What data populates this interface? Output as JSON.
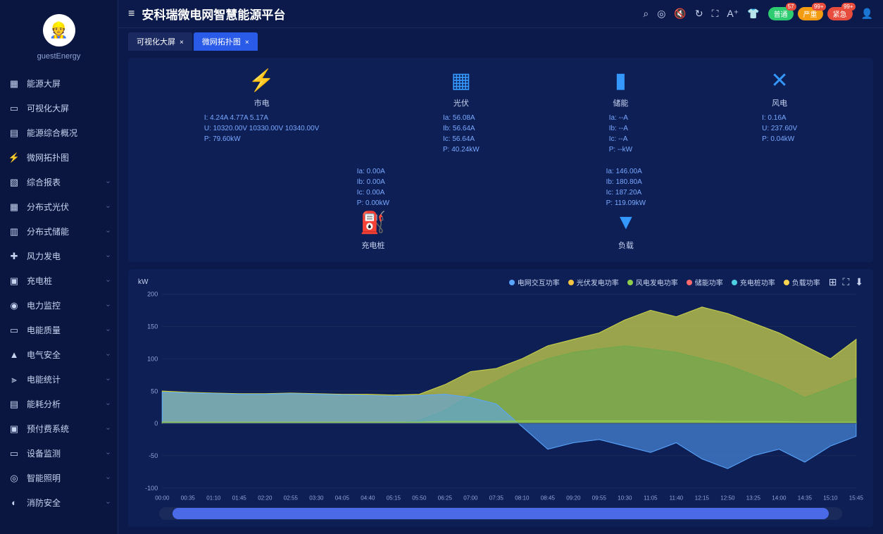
{
  "sidebar": {
    "username": "guestEnergy",
    "avatar_emoji": "👷",
    "items": [
      {
        "icon": "▦",
        "label": "能源大屏",
        "expandable": false
      },
      {
        "icon": "▭",
        "label": "可视化大屏",
        "expandable": false
      },
      {
        "icon": "▤",
        "label": "能源综合概况",
        "expandable": false
      },
      {
        "icon": "⚡",
        "label": "微网拓扑图",
        "expandable": false
      },
      {
        "icon": "▧",
        "label": "综合报表",
        "expandable": true
      },
      {
        "icon": "▦",
        "label": "分布式光伏",
        "expandable": true
      },
      {
        "icon": "▥",
        "label": "分布式储能",
        "expandable": true
      },
      {
        "icon": "✚",
        "label": "风力发电",
        "expandable": true
      },
      {
        "icon": "▣",
        "label": "充电桩",
        "expandable": true
      },
      {
        "icon": "◉",
        "label": "电力监控",
        "expandable": true
      },
      {
        "icon": "▭",
        "label": "电能质量",
        "expandable": true
      },
      {
        "icon": "▲",
        "label": "电气安全",
        "expandable": true
      },
      {
        "icon": "⫸",
        "label": "电能统计",
        "expandable": true
      },
      {
        "icon": "▤",
        "label": "能耗分析",
        "expandable": true
      },
      {
        "icon": "▣",
        "label": "预付费系统",
        "expandable": true
      },
      {
        "icon": "▭",
        "label": "设备监测",
        "expandable": true
      },
      {
        "icon": "◎",
        "label": "智能照明",
        "expandable": true
      },
      {
        "icon": "◐",
        "label": "消防安全",
        "expandable": true
      }
    ]
  },
  "header": {
    "title": "安科瑞微电网智慧能源平台",
    "badges": [
      {
        "label": "普通",
        "color_class": "badge-green",
        "count": "57"
      },
      {
        "label": "严重",
        "color_class": "badge-orange",
        "count": "99+"
      },
      {
        "label": "紧急",
        "color_class": "badge-red",
        "count": "99+"
      }
    ]
  },
  "tabs": [
    {
      "label": "可视化大屏",
      "active": false
    },
    {
      "label": "微网拓扑图",
      "active": true
    }
  ],
  "topology": {
    "row1": [
      {
        "name": "市电",
        "icon_char": "⚡",
        "stats": [
          "I: 4.24A 4.77A 5.17A",
          "U: 10320.00V 10330.00V 10340.00V",
          "P: 79.60kW"
        ]
      },
      {
        "name": "光伏",
        "icon_char": "▦",
        "stats": [
          "Ia: 56.08A",
          "Ib: 56.64A",
          "Ic: 56.64A",
          "P: 40.24kW"
        ]
      },
      {
        "name": "储能",
        "icon_char": "▮",
        "stats": [
          "Ia: --A",
          "Ib: --A",
          "Ic: --A",
          "P: --kW"
        ]
      },
      {
        "name": "风电",
        "icon_char": "✕",
        "stats": [
          "I: 0.16A",
          "U: 237.60V",
          "P: 0.04kW"
        ]
      }
    ],
    "row2": [
      {
        "name": "充电桩",
        "icon_char": "⛽",
        "stats": [
          "Ia: 0.00A",
          "Ib: 0.00A",
          "Ic: 0.00A",
          "P: 0.00kW"
        ]
      },
      {
        "name": "负载",
        "icon_char": "▼",
        "stats": [
          "Ia: 146.00A",
          "Ib: 180.80A",
          "Ic: 187.20A",
          "P: 119.09kW"
        ]
      }
    ]
  },
  "chart": {
    "unit": "kW",
    "y_ticks": [
      -100,
      -50,
      0,
      50,
      100,
      150,
      200
    ],
    "ylim": [
      -100,
      200
    ],
    "x_labels": [
      "00:00",
      "00:35",
      "01:10",
      "01:45",
      "02:20",
      "02:55",
      "03:30",
      "04:05",
      "04:40",
      "05:15",
      "05:50",
      "06:25",
      "07:00",
      "07:35",
      "08:10",
      "08:45",
      "09:20",
      "09:55",
      "10:30",
      "11:05",
      "11:40",
      "12:15",
      "12:50",
      "13:25",
      "14:00",
      "14:35",
      "15:10",
      "15:45"
    ],
    "legend": [
      {
        "label": "电网交互功率",
        "color": "#5aa6ff"
      },
      {
        "label": "光伏发电功率",
        "color": "#f5c542"
      },
      {
        "label": "风电发电功率",
        "color": "#8fce4d"
      },
      {
        "label": "储能功率",
        "color": "#ff6b6b"
      },
      {
        "label": "充电桩功率",
        "color": "#4dd0e1"
      },
      {
        "label": "负载功率",
        "color": "#ffd54f"
      }
    ],
    "series": {
      "grid": {
        "color": "#5aa6ff",
        "opacity": 0.55,
        "values": [
          48,
          47,
          46,
          45,
          45,
          46,
          45,
          44,
          43,
          42,
          43,
          45,
          40,
          30,
          -5,
          -40,
          -30,
          -25,
          -35,
          -45,
          -30,
          -55,
          -70,
          -50,
          -40,
          -60,
          -35,
          -20
        ]
      },
      "load": {
        "color": "#c9d14a",
        "opacity": 0.75,
        "values": [
          50,
          48,
          47,
          46,
          46,
          47,
          46,
          45,
          45,
          44,
          45,
          60,
          80,
          85,
          100,
          120,
          130,
          140,
          160,
          175,
          165,
          180,
          170,
          155,
          140,
          120,
          100,
          130
        ]
      },
      "pv": {
        "color": "#6fa84d",
        "opacity": 0.65,
        "values": [
          0,
          0,
          0,
          0,
          0,
          0,
          0,
          0,
          0,
          0,
          5,
          20,
          45,
          65,
          85,
          100,
          110,
          115,
          120,
          115,
          110,
          100,
          90,
          75,
          60,
          40,
          55,
          70
        ]
      },
      "wind": {
        "color": "#8fce4d",
        "opacity": 0.5,
        "values": [
          2,
          2,
          2,
          2,
          2,
          2,
          2,
          2,
          2,
          2,
          2,
          3,
          3,
          3,
          4,
          4,
          4,
          4,
          4,
          4,
          4,
          4,
          3,
          3,
          3,
          2,
          2,
          2
        ]
      }
    },
    "scrubber": {
      "start_pct": 2,
      "width_pct": 96
    }
  }
}
